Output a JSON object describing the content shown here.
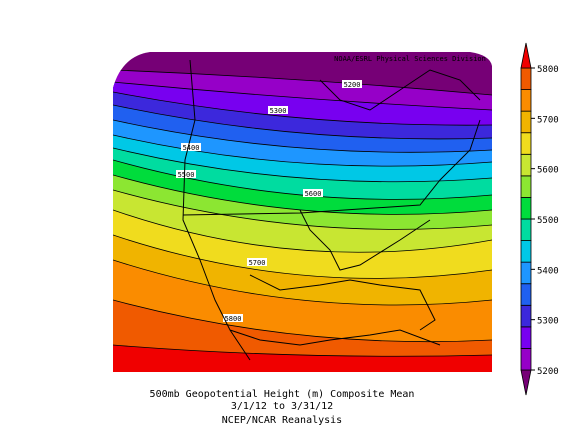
{
  "header": {
    "title": "NOAA/ESRL Physical Sciences Division"
  },
  "contour_labels": [
    5200,
    5300,
    5400,
    5500,
    5600,
    5700,
    5800
  ],
  "colorbar": {
    "ticks": [
      5800,
      5700,
      5600,
      5500,
      5400,
      5300,
      5200
    ],
    "range": [
      5200,
      5800
    ],
    "colors": [
      "#760076",
      "#9600c8",
      "#7800f0",
      "#3c28dc",
      "#2060f0",
      "#1e96ff",
      "#00c8e6",
      "#00dca0",
      "#00dc3c",
      "#8ce632",
      "#c8e632",
      "#f0dc1e",
      "#f0b400",
      "#fa8c00",
      "#f05a00",
      "#f00000"
    ]
  },
  "caption": {
    "line1": "500mb Geopotential Height (m) Composite Mean",
    "line2": "3/1/12  to 3/31/12",
    "line3": "NCEP/NCAR Reanalysis"
  }
}
